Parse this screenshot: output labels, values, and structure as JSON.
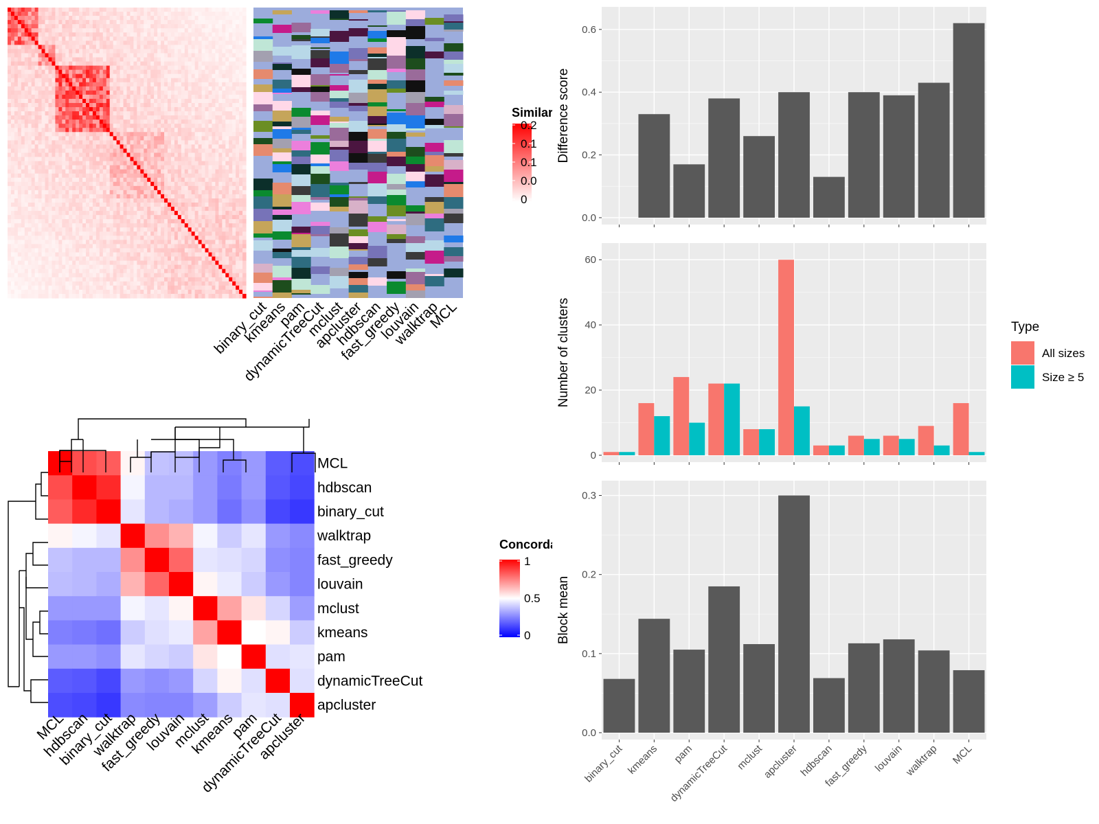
{
  "methods": [
    "binary_cut",
    "kmeans",
    "pam",
    "dynamicTreeCut",
    "mclust",
    "apcluster",
    "hdbscan",
    "fast_greedy",
    "louvain",
    "walktrap",
    "MCL"
  ],
  "similarity_legend": {
    "title": "Similarity",
    "ticks": [
      "0.2",
      "0.1",
      "0.1",
      "0.0",
      "0"
    ],
    "low_color": "#ffffff",
    "high_color": "#ff0000"
  },
  "concordance_legend": {
    "title": "Concordance",
    "ticks": [
      "1",
      "0.5",
      "0"
    ],
    "low_color": "#0000ff",
    "mid_color": "#ffffff",
    "high_color": "#ff0000"
  },
  "concordance_order": [
    "MCL",
    "hdbscan",
    "binary_cut",
    "walktrap",
    "fast_greedy",
    "louvain",
    "mclust",
    "kmeans",
    "pam",
    "dynamicTreeCut",
    "apcluster"
  ],
  "concordance_matrix": [
    [
      1.0,
      0.85,
      0.82,
      0.52,
      0.38,
      0.37,
      0.3,
      0.25,
      0.3,
      0.18,
      0.15
    ],
    [
      0.85,
      1.0,
      0.92,
      0.48,
      0.36,
      0.36,
      0.3,
      0.24,
      0.3,
      0.17,
      0.14
    ],
    [
      0.82,
      0.92,
      1.0,
      0.45,
      0.36,
      0.34,
      0.3,
      0.22,
      0.28,
      0.14,
      0.11
    ],
    [
      0.52,
      0.48,
      0.45,
      1.0,
      0.72,
      0.65,
      0.48,
      0.4,
      0.45,
      0.3,
      0.27
    ],
    [
      0.38,
      0.36,
      0.36,
      0.72,
      1.0,
      0.8,
      0.45,
      0.44,
      0.42,
      0.28,
      0.26
    ],
    [
      0.37,
      0.36,
      0.34,
      0.65,
      0.8,
      1.0,
      0.52,
      0.46,
      0.4,
      0.3,
      0.26
    ],
    [
      0.3,
      0.3,
      0.3,
      0.48,
      0.45,
      0.52,
      1.0,
      0.68,
      0.55,
      0.42,
      0.31
    ],
    [
      0.25,
      0.24,
      0.22,
      0.4,
      0.44,
      0.46,
      0.68,
      1.0,
      0.5,
      0.52,
      0.4
    ],
    [
      0.3,
      0.3,
      0.28,
      0.45,
      0.42,
      0.4,
      0.55,
      0.5,
      1.0,
      0.44,
      0.45
    ],
    [
      0.18,
      0.17,
      0.14,
      0.3,
      0.28,
      0.3,
      0.42,
      0.52,
      0.44,
      1.0,
      0.44
    ],
    [
      0.15,
      0.14,
      0.11,
      0.27,
      0.26,
      0.26,
      0.31,
      0.4,
      0.45,
      0.44,
      1.0
    ]
  ],
  "chart_data": [
    {
      "type": "bar",
      "categories": [
        "binary_cut",
        "kmeans",
        "pam",
        "dynamicTreeCut",
        "mclust",
        "apcluster",
        "hdbscan",
        "fast_greedy",
        "louvain",
        "walktrap",
        "MCL"
      ],
      "values": [
        0.0,
        0.33,
        0.17,
        0.38,
        0.26,
        0.4,
        0.13,
        0.4,
        0.39,
        0.43,
        0.62
      ],
      "ylabel": "Difference score",
      "ylim": [
        0,
        0.65
      ],
      "yticks": [
        "0.0",
        "0.2",
        "0.4",
        "0.6"
      ]
    },
    {
      "type": "bar",
      "categories": [
        "binary_cut",
        "kmeans",
        "pam",
        "dynamicTreeCut",
        "mclust",
        "apcluster",
        "hdbscan",
        "fast_greedy",
        "louvain",
        "walktrap",
        "MCL"
      ],
      "series": [
        {
          "name": "All sizes",
          "color": "#f8766d",
          "values": [
            1,
            16,
            24,
            22,
            8,
            60,
            3,
            6,
            6,
            9,
            16
          ]
        },
        {
          "name": "Size ≥ 5",
          "color": "#00bfc4",
          "values": [
            1,
            12,
            10,
            22,
            8,
            15,
            3,
            5,
            5,
            3,
            1
          ]
        }
      ],
      "ylabel": "Number of clusters",
      "ylim": [
        0,
        63
      ],
      "yticks": [
        "0",
        "20",
        "40",
        "60"
      ],
      "legend": {
        "title": "Type",
        "placement": "right"
      }
    },
    {
      "type": "bar",
      "categories": [
        "binary_cut",
        "kmeans",
        "pam",
        "dynamicTreeCut",
        "mclust",
        "apcluster",
        "hdbscan",
        "fast_greedy",
        "louvain",
        "walktrap",
        "MCL"
      ],
      "values": [
        0.068,
        0.144,
        0.105,
        0.185,
        0.112,
        0.3,
        0.069,
        0.113,
        0.118,
        0.104,
        0.079
      ],
      "ylabel": "Block mean",
      "ylim": [
        0,
        0.31
      ],
      "yticks": [
        "0.0",
        "0.1",
        "0.2",
        "0.3"
      ]
    }
  ]
}
